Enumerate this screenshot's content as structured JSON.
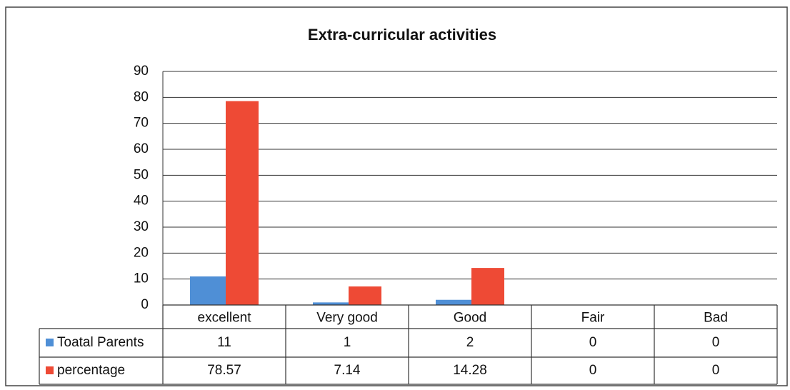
{
  "chart_data": {
    "type": "bar",
    "title": "Extra-curricular activities",
    "categories": [
      "excellent",
      "Very good",
      "Good",
      "Fair",
      "Bad"
    ],
    "series": [
      {
        "name": "Toatal Parents",
        "color": "#4f8fd6",
        "values": [
          11,
          1,
          2,
          0,
          0
        ]
      },
      {
        "name": "percentage",
        "color": "#ee4a35",
        "values": [
          78.57,
          7.14,
          14.28,
          0,
          0
        ]
      }
    ],
    "ylim": [
      0,
      90
    ],
    "yticks": [
      0,
      10,
      20,
      30,
      40,
      50,
      60,
      70,
      80,
      90
    ],
    "grid": true
  }
}
